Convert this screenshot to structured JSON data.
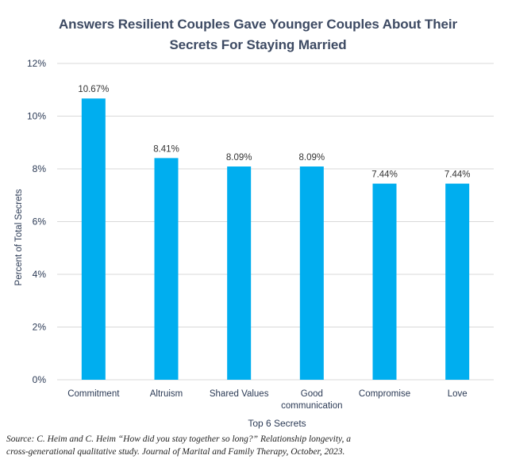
{
  "chart_data": {
    "type": "bar",
    "title_lines": [
      "Answers Resilient Couples Gave Younger Couples About Their",
      "Secrets For Staying Married"
    ],
    "categories": [
      [
        "Commitment"
      ],
      [
        "Altruism"
      ],
      [
        "Shared Values"
      ],
      [
        "Good",
        "communication"
      ],
      [
        "Compromise"
      ],
      [
        "Love"
      ]
    ],
    "values": [
      10.67,
      8.41,
      8.09,
      8.09,
      7.44,
      7.44
    ],
    "data_labels": [
      "10.67%",
      "8.41%",
      "8.09%",
      "8.09%",
      "7.44%",
      "7.44%"
    ],
    "xlabel": "Top 6 Secrets",
    "ylabel": "Percent of Total Secrets",
    "ylim": [
      0,
      12
    ],
    "yticks": [
      0,
      2,
      4,
      6,
      8,
      10,
      12
    ],
    "ytick_labels": [
      "0%",
      "2%",
      "4%",
      "6%",
      "8%",
      "10%",
      "12%"
    ],
    "grid": true,
    "colors": {
      "bar": "#00aeef",
      "grid": "#d9d9d9",
      "title": "#3d4a63",
      "axis_text": "#2b3a55",
      "label_text": "#333333"
    }
  },
  "source_lines": [
    "Source: C. Heim and C. Heim “How did you stay together so long?” Relationship longevity, a",
    "cross-generational qualitative study. Journal of Marital and Family Therapy, October, 2023."
  ]
}
